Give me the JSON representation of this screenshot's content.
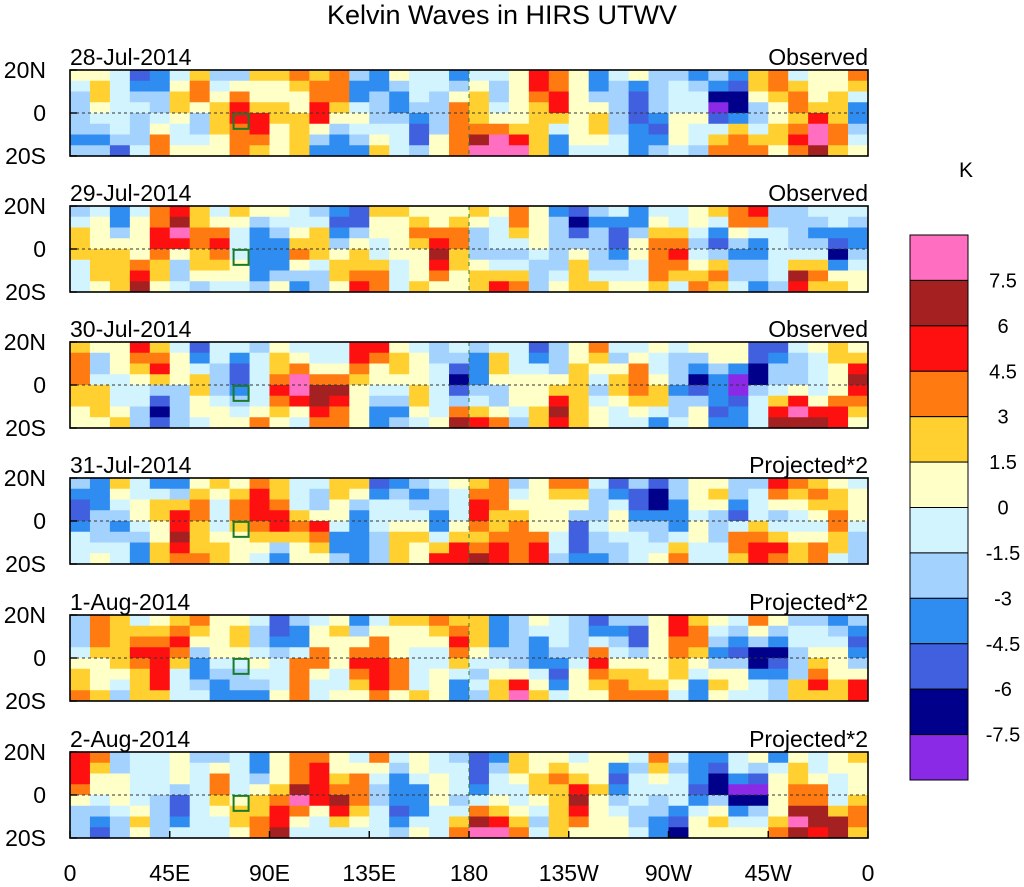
{
  "chart_data": {
    "type": "heatmap",
    "title": "Kelvin Waves in HIRS UTWV",
    "xlabel": "",
    "ylabel": "",
    "x_ticks": [
      "0",
      "45E",
      "90E",
      "135E",
      "180",
      "135W",
      "90W",
      "45W",
      "0"
    ],
    "y_ticks": [
      "20N",
      "0",
      "20S"
    ],
    "xlim": [
      0,
      360
    ],
    "ylim": [
      -20,
      20
    ],
    "panels": [
      {
        "date": "28-Jul-2014",
        "kind": "Observed"
      },
      {
        "date": "29-Jul-2014",
        "kind": "Observed"
      },
      {
        "date": "30-Jul-2014",
        "kind": "Observed"
      },
      {
        "date": "31-Jul-2014",
        "kind": "Projected*2"
      },
      {
        "date": "1-Aug-2014",
        "kind": "Projected*2"
      },
      {
        "date": "2-Aug-2014",
        "kind": "Projected*2"
      }
    ],
    "colorbar": {
      "unit": "K",
      "levels": [
        {
          "label": "7.5",
          "color": "#ff6ec0"
        },
        {
          "label": "6",
          "color": "#a52020"
        },
        {
          "label": "4.5",
          "color": "#ff1010"
        },
        {
          "label": "3",
          "color": "#ff7a10"
        },
        {
          "label": "1.5",
          "color": "#ffd030"
        },
        {
          "label": "0",
          "color": "#ffffc8"
        },
        {
          "label": "-1.5",
          "color": "#d2f4ff"
        },
        {
          "label": "-3",
          "color": "#a4d2ff"
        },
        {
          "label": "-4.5",
          "color": "#2f8cf0"
        },
        {
          "label": "-6",
          "color": "#4060e0"
        },
        {
          "label": "-7.5",
          "color": "#00008a"
        },
        {
          "label": "",
          "color": "#8a2ae6"
        }
      ]
    }
  }
}
